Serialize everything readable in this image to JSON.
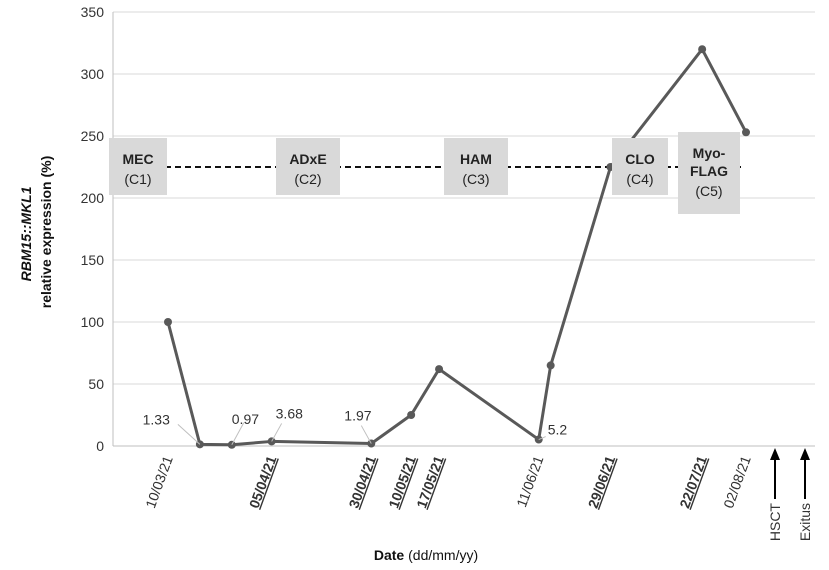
{
  "chart_data": {
    "type": "line",
    "ylabel_italic": "RBM15::MKL1",
    "ylabel_rest": "relative expression (%)",
    "xlabel_bold": "Date",
    "xlabel_rest": " (dd/mm/yy)",
    "ylim": [
      0,
      350
    ],
    "yticks": [
      0,
      50,
      100,
      150,
      200,
      250,
      300,
      350
    ],
    "grid": true,
    "points": [
      {
        "date": "10/03/21",
        "y": 100
      },
      {
        "date": "18/03/21",
        "y": 1.33
      },
      {
        "date": "26/03/21",
        "y": 0.97
      },
      {
        "date": "05/04/21",
        "y": 3.68
      },
      {
        "date": "30/04/21",
        "y": 1.97
      },
      {
        "date": "10/05/21",
        "y": 25
      },
      {
        "date": "17/05/21",
        "y": 62
      },
      {
        "date": "11/06/21",
        "y": 5.2
      },
      {
        "date": "14/06/21",
        "y": 65
      },
      {
        "date": "29/06/21",
        "y": 225
      },
      {
        "date": "22/07/21",
        "y": 320
      },
      {
        "date": "02/08/21",
        "y": 253
      }
    ],
    "point_labels": [
      {
        "text": "1.33",
        "point": 1
      },
      {
        "text": "0.97",
        "point": 2
      },
      {
        "text": "3.68",
        "point": 3
      },
      {
        "text": "1.97",
        "point": 4
      },
      {
        "text": "5.2",
        "point": 7
      }
    ],
    "x_tick_labels": [
      {
        "text": "10/03/21",
        "underline": false
      },
      {
        "text": "05/04/21",
        "underline": true
      },
      {
        "text": "30/04/21",
        "underline": true
      },
      {
        "text": "10/05/21",
        "underline": true
      },
      {
        "text": "17/05/21",
        "underline": true
      },
      {
        "text": "11/06/21",
        "underline": false
      },
      {
        "text": "29/06/21",
        "underline": true
      },
      {
        "text": "22/07/21",
        "underline": true
      },
      {
        "text": "02/08/21",
        "underline": false
      }
    ],
    "events": [
      "HSCT",
      "Exitus"
    ],
    "treatment_line_y": 225,
    "treatments": [
      {
        "name": "MEC",
        "cycle": "(C1)"
      },
      {
        "name": "ADxE",
        "cycle": "(C2)"
      },
      {
        "name": "HAM",
        "cycle": "(C3)"
      },
      {
        "name": "CLO",
        "cycle": "(C4)"
      },
      {
        "name": "Myo-\nFLAG",
        "cycle": "(C5)"
      }
    ]
  }
}
